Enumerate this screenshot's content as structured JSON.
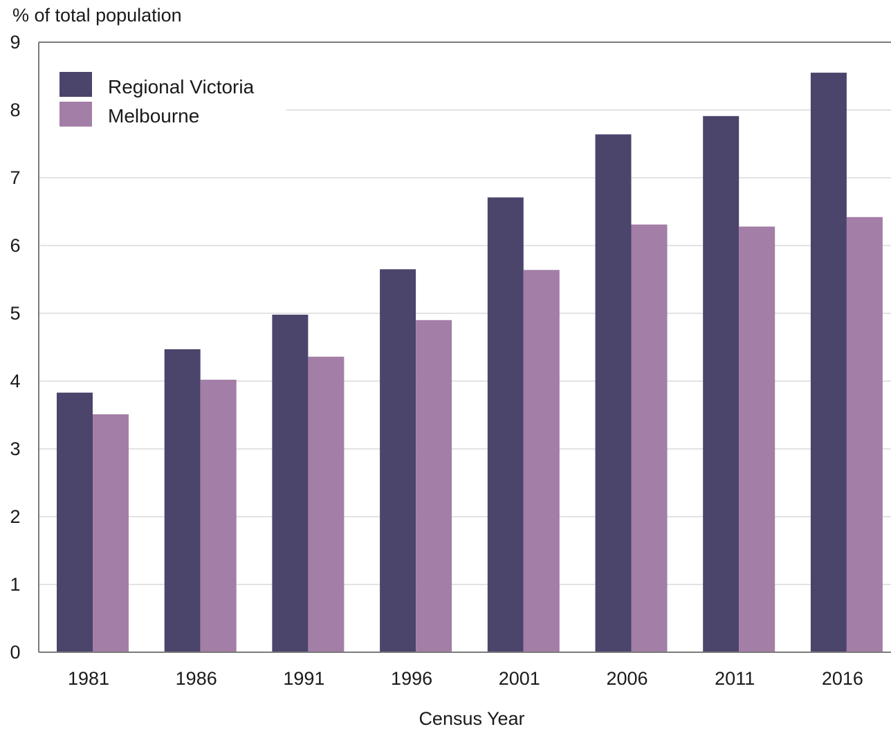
{
  "chart_data": {
    "type": "bar",
    "ylabel": "% of total population",
    "xlabel": "Census Year",
    "categories": [
      "1981",
      "1986",
      "1991",
      "1996",
      "2001",
      "2006",
      "2011",
      "2016"
    ],
    "series": [
      {
        "name": "Regional Victoria",
        "color": "#4b446b",
        "values": [
          3.83,
          4.47,
          4.98,
          5.65,
          6.71,
          7.64,
          7.91,
          8.55
        ]
      },
      {
        "name": "Melbourne",
        "color": "#a37ea6",
        "values": [
          3.51,
          4.02,
          4.36,
          4.9,
          5.64,
          6.31,
          6.28,
          6.42
        ]
      }
    ],
    "ylim": [
      0,
      9
    ],
    "yticks": [
      0,
      1,
      2,
      3,
      4,
      5,
      6,
      7,
      8,
      9
    ],
    "grid": true,
    "legend_position": "top-left"
  }
}
